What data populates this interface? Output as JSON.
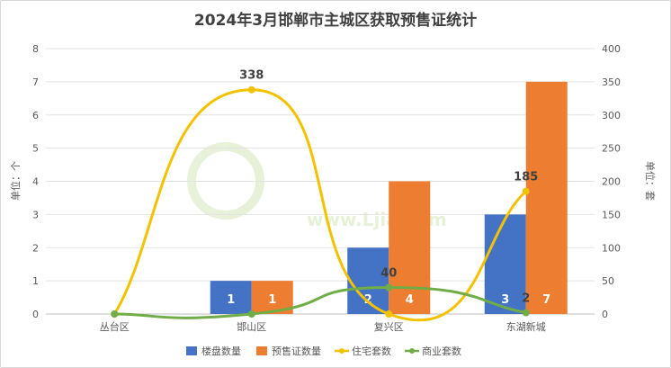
{
  "chart_data": {
    "type": "bar",
    "title": "2024年3月邯郸市主城区获取预售证统计",
    "categories": [
      "丛台区",
      "邯山区",
      "复兴区",
      "东湖新城"
    ],
    "y_left_label": "单位：个",
    "y_right_label": "单位：套",
    "y_left_lim": [
      0,
      8
    ],
    "y_left_ticks": [
      "0",
      "1",
      "2",
      "3",
      "4",
      "5",
      "6",
      "7",
      "8"
    ],
    "y_right_lim": [
      0,
      400
    ],
    "y_right_ticks": [
      "0",
      "50",
      "100",
      "150",
      "200",
      "250",
      "300",
      "350",
      "400"
    ],
    "grid": true,
    "legend_position": "bottom",
    "series": [
      {
        "name": "楼盘数量",
        "kind": "bar",
        "axis": "left",
        "color": "#4472C4",
        "values": [
          0,
          1,
          2,
          3
        ],
        "labels": [
          "",
          "1",
          "2",
          "3"
        ]
      },
      {
        "name": "预售证数量",
        "kind": "bar",
        "axis": "left",
        "color": "#ED7D31",
        "values": [
          0,
          1,
          4,
          7
        ],
        "labels": [
          "",
          "1",
          "4",
          "7"
        ]
      },
      {
        "name": "住宅套数",
        "kind": "line",
        "axis": "right",
        "color": "#F2C200",
        "values": [
          0,
          338,
          0,
          185
        ],
        "labels": [
          "",
          "338",
          "",
          "185"
        ]
      },
      {
        "name": "商业套数",
        "kind": "line",
        "axis": "right",
        "color": "#70AD47",
        "values": [
          0,
          0,
          40,
          2
        ],
        "labels": [
          "",
          "",
          "40",
          "2"
        ]
      }
    ],
    "watermark": "www.Ljia.com"
  }
}
